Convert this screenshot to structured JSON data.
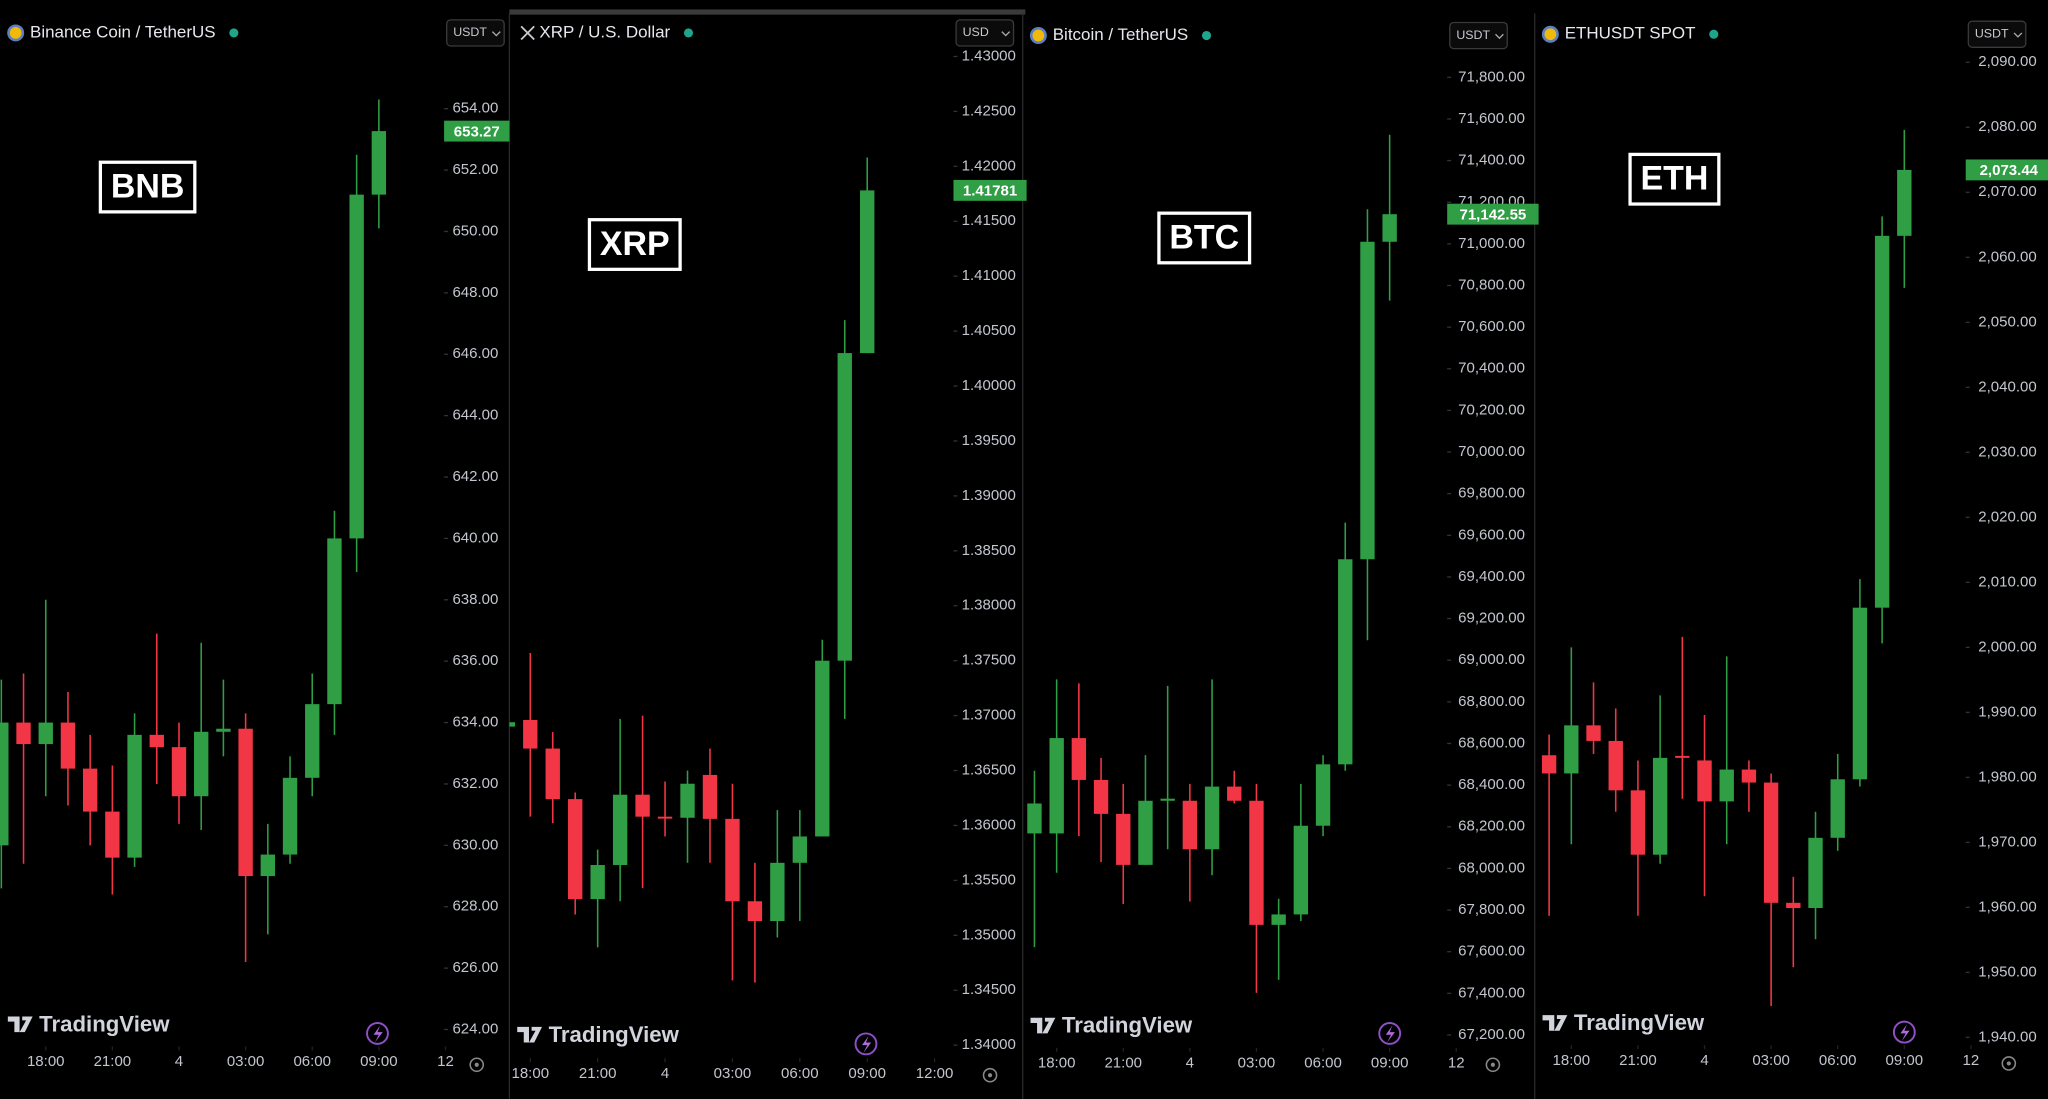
{
  "brand": "TradingView",
  "chart_data": [
    {
      "type": "candlestick",
      "title": "Binance Coin / TetherUS",
      "symbol_label": "BNB",
      "currency": "USDT",
      "up_color": "#2f9e44",
      "down_color": "#f23645",
      "x": [
        16,
        17,
        18,
        19,
        20,
        21,
        22,
        23,
        24,
        25,
        26,
        27,
        28,
        29,
        30,
        31,
        32,
        33
      ],
      "open": [
        630.0,
        634.0,
        633.3,
        634.0,
        632.5,
        631.1,
        629.6,
        633.6,
        633.2,
        631.6,
        633.7,
        633.8,
        629.0,
        629.7,
        632.2,
        634.6,
        640.0,
        651.2
      ],
      "high": [
        635.4,
        635.6,
        638.0,
        635.0,
        633.6,
        632.6,
        634.3,
        636.9,
        634.0,
        636.6,
        635.4,
        634.3,
        630.7,
        632.9,
        635.6,
        640.9,
        652.5,
        654.3
      ],
      "low": [
        628.6,
        629.4,
        631.6,
        631.3,
        630.0,
        628.4,
        629.3,
        632.0,
        630.7,
        630.5,
        632.9,
        626.2,
        627.1,
        629.4,
        631.6,
        633.6,
        638.9,
        650.1
      ],
      "close": [
        634.0,
        633.3,
        634.0,
        632.5,
        631.1,
        629.6,
        633.6,
        633.2,
        631.6,
        633.7,
        633.8,
        629.0,
        629.7,
        632.2,
        634.6,
        640.0,
        651.2,
        653.27
      ],
      "last_price": 653.27,
      "xlim": [
        15.94,
        36.29
      ],
      "ylim": [
        623.49,
        655.83
      ],
      "xticks": [
        {
          "value": 18,
          "label": "18:00"
        },
        {
          "value": 21,
          "label": "21:00"
        },
        {
          "value": 24,
          "label": "4"
        },
        {
          "value": 27,
          "label": "03:00"
        },
        {
          "value": 30,
          "label": "06:00"
        },
        {
          "value": 33,
          "label": "09:00"
        },
        {
          "value": 36,
          "label": "12"
        }
      ],
      "yticks": [
        {
          "value": 624,
          "label": "624.00"
        },
        {
          "value": 626,
          "label": "626.00"
        },
        {
          "value": 628,
          "label": "628.00"
        },
        {
          "value": 630,
          "label": "630.00"
        },
        {
          "value": 632,
          "label": "632.00"
        },
        {
          "value": 634,
          "label": "634.00"
        },
        {
          "value": 636,
          "label": "636.00"
        },
        {
          "value": 638,
          "label": "638.00"
        },
        {
          "value": 640,
          "label": "640.00"
        },
        {
          "value": 642,
          "label": "642.00"
        },
        {
          "value": 644,
          "label": "644.00"
        },
        {
          "value": 646,
          "label": "646.00"
        },
        {
          "value": 648,
          "label": "648.00"
        },
        {
          "value": 650,
          "label": "650.00"
        },
        {
          "value": 652,
          "label": "652.00"
        },
        {
          "value": 654,
          "label": "654.00"
        }
      ]
    },
    {
      "type": "candlestick",
      "title": "XRP / U.S. Dollar",
      "symbol_label": "XRP",
      "currency": "USD",
      "up_color": "#2f9e44",
      "down_color": "#f23645",
      "x": [
        17,
        18,
        19,
        20,
        21,
        22,
        23,
        24,
        25,
        26,
        27,
        28,
        29,
        30,
        31,
        32,
        33
      ],
      "open": [
        1.369,
        1.3696,
        1.367,
        1.3624,
        1.3533,
        1.3564,
        1.3628,
        1.3608,
        1.3607,
        1.3646,
        1.3606,
        1.3531,
        1.3513,
        1.3566,
        1.359,
        1.375,
        1.403
      ],
      "high": [
        1.37,
        1.3757,
        1.3685,
        1.363,
        1.3578,
        1.3697,
        1.37,
        1.364,
        1.365,
        1.367,
        1.3638,
        1.3566,
        1.3614,
        1.3614,
        1.3769,
        1.406,
        1.4208
      ],
      "low": [
        1.368,
        1.3608,
        1.3602,
        1.3519,
        1.3489,
        1.3531,
        1.3543,
        1.359,
        1.3566,
        1.3566,
        1.3459,
        1.3457,
        1.3498,
        1.3513,
        1.359,
        1.3697,
        1.403
      ],
      "close": [
        1.3694,
        1.367,
        1.3624,
        1.3533,
        1.3564,
        1.3628,
        1.3608,
        1.3607,
        1.3638,
        1.3606,
        1.3531,
        1.3513,
        1.3566,
        1.359,
        1.375,
        1.403,
        1.41781
      ],
      "last_price": 1.41781,
      "xlim": [
        17.07,
        36.84
      ],
      "ylim": [
        1.34,
        1.43036
      ],
      "xticks": [
        {
          "value": 18,
          "label": "18:00"
        },
        {
          "value": 21,
          "label": "21:00"
        },
        {
          "value": 24,
          "label": "4"
        },
        {
          "value": 27,
          "label": "03:00"
        },
        {
          "value": 30,
          "label": "06:00"
        },
        {
          "value": 33,
          "label": "09:00"
        },
        {
          "value": 36,
          "label": "12:00"
        }
      ],
      "yticks": [
        {
          "value": 1.34,
          "label": "1.34000"
        },
        {
          "value": 1.345,
          "label": "1.34500"
        },
        {
          "value": 1.35,
          "label": "1.35000"
        },
        {
          "value": 1.355,
          "label": "1.35500"
        },
        {
          "value": 1.36,
          "label": "1.36000"
        },
        {
          "value": 1.365,
          "label": "1.36500"
        },
        {
          "value": 1.37,
          "label": "1.37000"
        },
        {
          "value": 1.375,
          "label": "1.37500"
        },
        {
          "value": 1.38,
          "label": "1.38000"
        },
        {
          "value": 1.385,
          "label": "1.38500"
        },
        {
          "value": 1.39,
          "label": "1.39000"
        },
        {
          "value": 1.395,
          "label": "1.39500"
        },
        {
          "value": 1.4,
          "label": "1.40000"
        },
        {
          "value": 1.405,
          "label": "1.40500"
        },
        {
          "value": 1.41,
          "label": "1.41000"
        },
        {
          "value": 1.415,
          "label": "1.41500"
        },
        {
          "value": 1.42,
          "label": "1.42000"
        },
        {
          "value": 1.425,
          "label": "1.42500"
        },
        {
          "value": 1.43,
          "label": "1.43000"
        }
      ]
    },
    {
      "type": "candlestick",
      "title": "Bitcoin / TetherUS",
      "symbol_label": "BTC",
      "currency": "USDT",
      "up_color": "#2f9e44",
      "down_color": "#f23645",
      "x": [
        17,
        18,
        19,
        20,
        21,
        22,
        23,
        24,
        25,
        26,
        27,
        28,
        29,
        30,
        31,
        32,
        33
      ],
      "open": [
        68168,
        68168,
        68626,
        68425,
        68262,
        68017,
        68325,
        68325,
        68092,
        68393,
        68325,
        67729,
        67779,
        68205,
        68500,
        69485,
        71010
      ],
      "high": [
        68469,
        68908,
        68889,
        68531,
        68406,
        68544,
        68877,
        68406,
        68908,
        68469,
        68406,
        67854,
        68406,
        68544,
        69661,
        71166,
        71524
      ],
      "low": [
        67622,
        67979,
        68155,
        68030,
        67829,
        68017,
        68092,
        67841,
        67967,
        68312,
        67402,
        67465,
        67747,
        68155,
        68469,
        69096,
        70727
      ],
      "close": [
        68312,
        68626,
        68425,
        68262,
        68017,
        68325,
        68335,
        68092,
        68393,
        68325,
        67729,
        67779,
        68205,
        68500,
        69485,
        71010,
        71142.55
      ],
      "last_price": {
        "value": 71142.55,
        "label": "71,142.55"
      },
      "xlim": [
        16.47,
        36.18
      ],
      "ylim": [
        67151,
        71919
      ],
      "xticks": [
        {
          "value": 18,
          "label": "18:00"
        },
        {
          "value": 21,
          "label": "21:00"
        },
        {
          "value": 24,
          "label": "4"
        },
        {
          "value": 27,
          "label": "03:00"
        },
        {
          "value": 30,
          "label": "06:00"
        },
        {
          "value": 33,
          "label": "09:00"
        },
        {
          "value": 36,
          "label": "12"
        }
      ],
      "yticks": [
        {
          "value": 67200,
          "label": "67,200.00"
        },
        {
          "value": 67400,
          "label": "67,400.00"
        },
        {
          "value": 67600,
          "label": "67,600.00"
        },
        {
          "value": 67800,
          "label": "67,800.00"
        },
        {
          "value": 68000,
          "label": "68,000.00"
        },
        {
          "value": 68200,
          "label": "68,200.00"
        },
        {
          "value": 68400,
          "label": "68,400.00"
        },
        {
          "value": 68600,
          "label": "68,600.00"
        },
        {
          "value": 68800,
          "label": "68,800.00"
        },
        {
          "value": 69000,
          "label": "69,000.00"
        },
        {
          "value": 69200,
          "label": "69,200.00"
        },
        {
          "value": 69400,
          "label": "69,400.00"
        },
        {
          "value": 69600,
          "label": "69,600.00"
        },
        {
          "value": 69800,
          "label": "69,800.00"
        },
        {
          "value": 70000,
          "label": "70,000.00"
        },
        {
          "value": 70200,
          "label": "70,200.00"
        },
        {
          "value": 70400,
          "label": "70,400.00"
        },
        {
          "value": 70600,
          "label": "70,600.00"
        },
        {
          "value": 70800,
          "label": "70,800.00"
        },
        {
          "value": 71000,
          "label": "71,000.00"
        },
        {
          "value": 71200,
          "label": "71,200.00"
        },
        {
          "value": 71400,
          "label": "71,400.00"
        },
        {
          "value": 71600,
          "label": "71,600.00"
        },
        {
          "value": 71800,
          "label": "71,800.00"
        }
      ]
    },
    {
      "type": "candlestick",
      "title": "ETHUSDT SPOT",
      "symbol_label": "ETH",
      "currency": "USDT",
      "up_color": "#2f9e44",
      "down_color": "#f23645",
      "x": [
        17,
        18,
        19,
        20,
        21,
        22,
        23,
        24,
        25,
        26,
        27,
        28,
        29,
        30,
        31,
        32,
        33
      ],
      "open": [
        1983.4,
        1980.6,
        1988.0,
        1985.6,
        1978.0,
        1968.1,
        1983.3,
        1982.6,
        1976.3,
        1981.2,
        1979.2,
        1960.7,
        1959.9,
        1970.7,
        1979.7,
        2006.1,
        2063.3
      ],
      "high": [
        1986.6,
        2000.0,
        1994.6,
        1990.6,
        1982.6,
        1992.6,
        2001.6,
        1989.6,
        1998.6,
        1982.6,
        1980.6,
        1964.7,
        1974.7,
        1983.6,
        2010.5,
        2066.3,
        2079.6
      ],
      "low": [
        1958.7,
        1969.7,
        1983.6,
        1974.7,
        1958.7,
        1966.7,
        1976.7,
        1961.7,
        1969.7,
        1974.7,
        1944.8,
        1950.8,
        1955.1,
        1968.7,
        1978.6,
        2000.6,
        2055.3
      ],
      "close": [
        1980.6,
        1988.0,
        1985.6,
        1978.0,
        1968.1,
        1983.0,
        1983.0,
        1976.3,
        1981.2,
        1979.2,
        1960.7,
        1959.9,
        1970.7,
        1979.7,
        2006.1,
        2063.3,
        2073.44
      ],
      "last_price": {
        "value": 2073.44,
        "label": "2,073.44"
      },
      "xlim": [
        16.35,
        36.06
      ],
      "ylim": [
        1938.8,
        2091.5
      ],
      "xticks": [
        {
          "value": 18,
          "label": "18:00"
        },
        {
          "value": 21,
          "label": "21:00"
        },
        {
          "value": 24,
          "label": "4"
        },
        {
          "value": 27,
          "label": "03:00"
        },
        {
          "value": 30,
          "label": "06:00"
        },
        {
          "value": 33,
          "label": "09:00"
        },
        {
          "value": 36,
          "label": "12"
        }
      ],
      "yticks": [
        {
          "value": 1940,
          "label": "1,940.00"
        },
        {
          "value": 1950,
          "label": "1,950.00"
        },
        {
          "value": 1960,
          "label": "1,960.00"
        },
        {
          "value": 1970,
          "label": "1,970.00"
        },
        {
          "value": 1980,
          "label": "1,980.00"
        },
        {
          "value": 1990,
          "label": "1,990.00"
        },
        {
          "value": 2000,
          "label": "2,000.00"
        },
        {
          "value": 2010,
          "label": "2,010.00"
        },
        {
          "value": 2020,
          "label": "2,020.00"
        },
        {
          "value": 2030,
          "label": "2,030.00"
        },
        {
          "value": 2040,
          "label": "2,040.00"
        },
        {
          "value": 2050,
          "label": "2,050.00"
        },
        {
          "value": 2060,
          "label": "2,060.00"
        },
        {
          "value": 2070,
          "label": "2,070.00"
        },
        {
          "value": 2080,
          "label": "2,080.00"
        },
        {
          "value": 2090,
          "label": "2,090.00"
        }
      ]
    }
  ]
}
